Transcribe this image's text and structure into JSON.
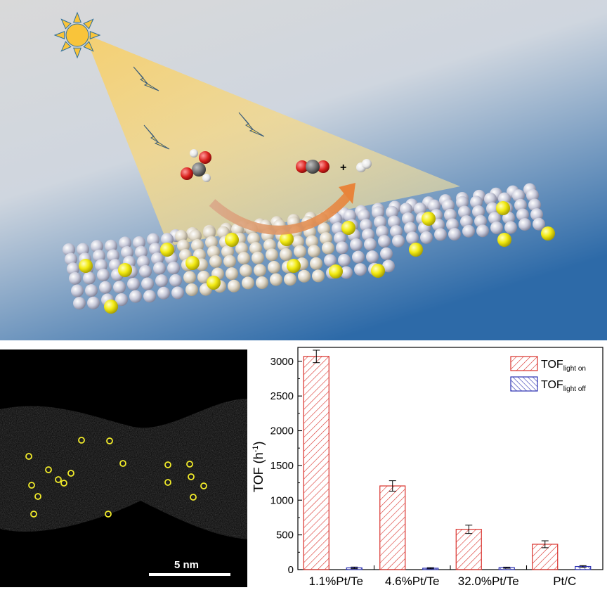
{
  "scene": {
    "plus_sign": "+",
    "colors": {
      "light_cone": "#f3d27a",
      "sun": "#f9c43a",
      "te_atom": "#c8cad8",
      "pt_atom": "#f0e81a",
      "surface_atom": "#d9d2c2",
      "arrow": "#e8843a",
      "oxygen": "#d8201c",
      "carbon": "#6e6e6e",
      "hydrogen": "#eeeeee"
    }
  },
  "stem_image": {
    "scale_bar_label": "5 nm",
    "marker_color": "#f2ec2a"
  },
  "chart_data": {
    "type": "bar",
    "categories": [
      "1.1%Pt/Te",
      "4.6%Pt/Te",
      "32.0%Pt/Te",
      "Pt/C"
    ],
    "series": [
      {
        "name": "TOF",
        "name_subscript": "light on",
        "values": [
          3070,
          1205,
          580,
          365
        ],
        "errors": [
          90,
          75,
          60,
          50
        ],
        "color": "#d9302a"
      },
      {
        "name": "TOF",
        "name_subscript": "light off",
        "values": [
          25,
          20,
          28,
          45
        ],
        "errors": [
          12,
          8,
          8,
          12
        ],
        "color": "#2a2fb0"
      }
    ],
    "ylabel": "TOF (h",
    "ylabel_superscript": "-1",
    "ylabel_suffix": ")",
    "ylim": [
      0,
      3200
    ],
    "yticks": [
      "0",
      "500",
      "1000",
      "1500",
      "2000",
      "2500",
      "3000"
    ],
    "legend_position": "top-right",
    "grid": false
  }
}
